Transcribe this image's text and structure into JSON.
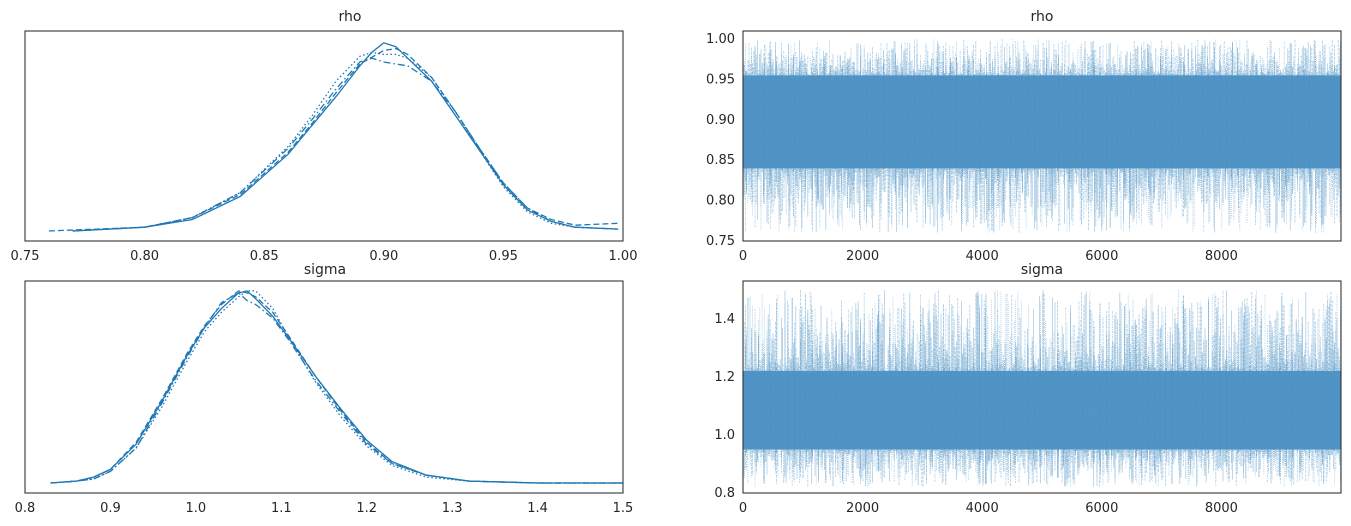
{
  "colors": {
    "line": "#1f77b4",
    "trace": "#4a90c4",
    "frame": "#222222",
    "text": "#262626"
  },
  "chart_data": [
    {
      "type": "line",
      "panel": "rho-density",
      "title": "rho",
      "xlabel": "",
      "ylabel": "",
      "xlim": [
        0.75,
        1.0
      ],
      "xticks": [
        "0.75",
        "0.80",
        "0.85",
        "0.90",
        "0.95",
        "1.00"
      ],
      "grid": false,
      "series": [
        {
          "style": "solid",
          "x": [
            0.77,
            0.8,
            0.82,
            0.84,
            0.86,
            0.87,
            0.88,
            0.89,
            0.895,
            0.9,
            0.905,
            0.91,
            0.92,
            0.93,
            0.94,
            0.95,
            0.96,
            0.97,
            0.98,
            0.998
          ],
          "y": [
            0.0,
            0.02,
            0.06,
            0.18,
            0.4,
            0.55,
            0.7,
            0.86,
            0.93,
            0.98,
            0.96,
            0.9,
            0.78,
            0.6,
            0.42,
            0.24,
            0.11,
            0.05,
            0.02,
            0.01
          ]
        },
        {
          "style": "dashed",
          "x": [
            0.76,
            0.8,
            0.82,
            0.84,
            0.86,
            0.87,
            0.88,
            0.89,
            0.9,
            0.905,
            0.91,
            0.92,
            0.93,
            0.94,
            0.95,
            0.96,
            0.97,
            0.98,
            0.998
          ],
          "y": [
            0.0,
            0.02,
            0.07,
            0.19,
            0.41,
            0.56,
            0.72,
            0.87,
            0.94,
            0.95,
            0.92,
            0.8,
            0.62,
            0.43,
            0.25,
            0.12,
            0.06,
            0.03,
            0.04
          ]
        },
        {
          "style": "dashdot",
          "x": [
            0.77,
            0.8,
            0.82,
            0.84,
            0.86,
            0.87,
            0.88,
            0.89,
            0.895,
            0.9,
            0.905,
            0.91,
            0.92,
            0.93,
            0.94,
            0.95,
            0.96,
            0.97,
            0.98,
            0.998
          ],
          "y": [
            0.0,
            0.02,
            0.07,
            0.2,
            0.43,
            0.58,
            0.74,
            0.88,
            0.9,
            0.88,
            0.87,
            0.86,
            0.78,
            0.62,
            0.43,
            0.25,
            0.12,
            0.05,
            0.02,
            0.01
          ]
        },
        {
          "style": "dotted",
          "x": [
            0.77,
            0.8,
            0.82,
            0.84,
            0.86,
            0.87,
            0.88,
            0.89,
            0.895,
            0.9,
            0.905,
            0.91,
            0.92,
            0.93,
            0.94,
            0.95,
            0.96,
            0.97,
            0.98,
            0.998
          ],
          "y": [
            0.0,
            0.02,
            0.07,
            0.2,
            0.44,
            0.6,
            0.78,
            0.91,
            0.93,
            0.92,
            0.92,
            0.9,
            0.8,
            0.62,
            0.42,
            0.23,
            0.1,
            0.04,
            0.02,
            0.01
          ]
        }
      ]
    },
    {
      "type": "line",
      "panel": "rho-trace",
      "title": "rho",
      "xlabel": "",
      "ylabel": "",
      "xlim": [
        0,
        10000
      ],
      "ylim": [
        0.75,
        1.01
      ],
      "xticks": [
        "0",
        "2000",
        "4000",
        "6000",
        "8000"
      ],
      "yticks": [
        "0.75",
        "0.80",
        "0.85",
        "0.90",
        "0.95",
        "1.00"
      ],
      "band": {
        "center": 0.898,
        "low": 0.84,
        "high": 0.955,
        "min": 0.76,
        "max": 1.0
      },
      "grid": false
    },
    {
      "type": "line",
      "panel": "sigma-density",
      "title": "sigma",
      "xlabel": "",
      "ylabel": "",
      "xlim": [
        0.8,
        1.5
      ],
      "xticks": [
        "0.8",
        "0.9",
        "1.0",
        "1.1",
        "1.2",
        "1.3",
        "1.4",
        "1.5"
      ],
      "grid": false,
      "series": [
        {
          "style": "solid",
          "x": [
            0.83,
            0.86,
            0.88,
            0.9,
            0.93,
            0.96,
            0.99,
            1.01,
            1.03,
            1.05,
            1.06,
            1.07,
            1.09,
            1.11,
            1.14,
            1.17,
            1.2,
            1.23,
            1.27,
            1.32,
            1.4,
            1.5
          ],
          "y": [
            0.0,
            0.01,
            0.03,
            0.07,
            0.2,
            0.42,
            0.66,
            0.8,
            0.9,
            0.98,
            0.99,
            0.95,
            0.86,
            0.74,
            0.55,
            0.38,
            0.22,
            0.11,
            0.04,
            0.01,
            0.0,
            0.0
          ]
        },
        {
          "style": "dashed",
          "x": [
            0.83,
            0.86,
            0.88,
            0.9,
            0.93,
            0.96,
            0.99,
            1.01,
            1.03,
            1.05,
            1.06,
            1.07,
            1.09,
            1.11,
            1.14,
            1.17,
            1.2,
            1.23,
            1.27,
            1.32,
            1.4,
            1.5
          ],
          "y": [
            0.0,
            0.01,
            0.03,
            0.07,
            0.21,
            0.43,
            0.67,
            0.81,
            0.92,
            0.99,
            0.98,
            0.96,
            0.88,
            0.75,
            0.55,
            0.37,
            0.21,
            0.1,
            0.04,
            0.01,
            0.0,
            0.0
          ]
        },
        {
          "style": "dashdot",
          "x": [
            0.83,
            0.86,
            0.88,
            0.9,
            0.93,
            0.96,
            0.99,
            1.01,
            1.03,
            1.05,
            1.06,
            1.07,
            1.09,
            1.11,
            1.14,
            1.17,
            1.2,
            1.23,
            1.27,
            1.32,
            1.4,
            1.5
          ],
          "y": [
            0.0,
            0.01,
            0.02,
            0.06,
            0.18,
            0.41,
            0.65,
            0.8,
            0.93,
            0.98,
            0.94,
            0.92,
            0.85,
            0.73,
            0.53,
            0.36,
            0.2,
            0.1,
            0.04,
            0.01,
            0.0,
            0.0
          ]
        },
        {
          "style": "dotted",
          "x": [
            0.83,
            0.86,
            0.88,
            0.9,
            0.93,
            0.96,
            0.99,
            1.01,
            1.03,
            1.05,
            1.06,
            1.07,
            1.09,
            1.11,
            1.14,
            1.17,
            1.2,
            1.23,
            1.27,
            1.32,
            1.4,
            1.5
          ],
          "y": [
            0.0,
            0.01,
            0.02,
            0.06,
            0.18,
            0.39,
            0.63,
            0.78,
            0.88,
            0.96,
            0.99,
            0.99,
            0.9,
            0.74,
            0.52,
            0.34,
            0.19,
            0.09,
            0.03,
            0.01,
            0.0,
            0.0
          ]
        }
      ]
    },
    {
      "type": "line",
      "panel": "sigma-trace",
      "title": "sigma",
      "xlabel": "",
      "ylabel": "",
      "xlim": [
        0,
        10000
      ],
      "ylim": [
        0.8,
        1.53
      ],
      "xticks": [
        "0",
        "2000",
        "4000",
        "6000",
        "8000"
      ],
      "yticks": [
        "0.8",
        "1.0",
        "1.2",
        "1.4"
      ],
      "band": {
        "center": 1.07,
        "low": 0.95,
        "high": 1.22,
        "min": 0.82,
        "max": 1.5
      },
      "grid": false
    }
  ]
}
